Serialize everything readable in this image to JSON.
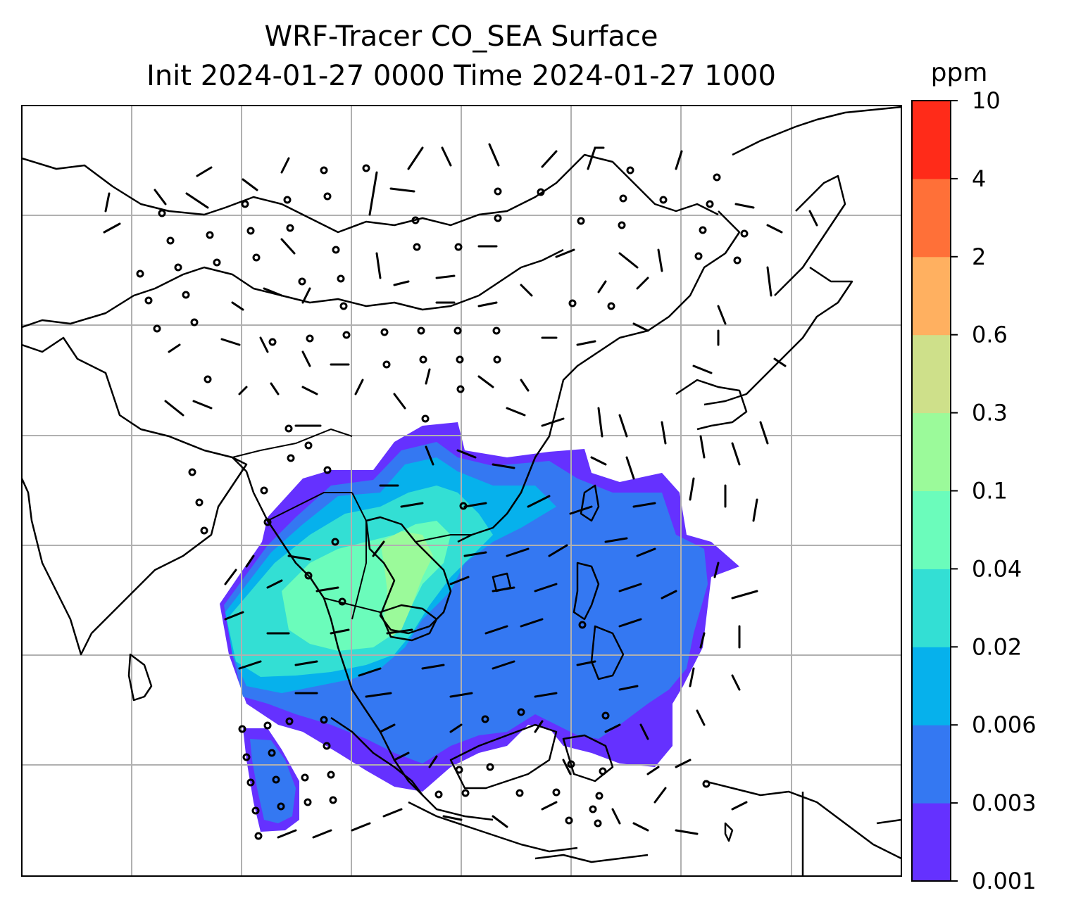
{
  "title": {
    "line1": "WRF-Tracer CO_SEA Surface",
    "line2": "Init 2024-01-27 0000 Time 2024-01-27 1000"
  },
  "colorbar": {
    "unit": "ppm",
    "levels": [
      "0.001",
      "0.003",
      "0.006",
      "0.02",
      "0.04",
      "0.1",
      "0.3",
      "0.6",
      "2",
      "4",
      "10"
    ],
    "colors": [
      "#6531ff",
      "#3478f2",
      "#06b1ec",
      "#33dfd4",
      "#6bfcbb",
      "#9bfa9a",
      "#cee08a",
      "#ffb060",
      "#ff7038",
      "#ff2b19"
    ]
  },
  "map": {
    "gridlines": true,
    "features": [
      "coastlines",
      "country-borders",
      "wind-barbs",
      "calm-circles",
      "tracer-concentration-fill"
    ]
  }
}
